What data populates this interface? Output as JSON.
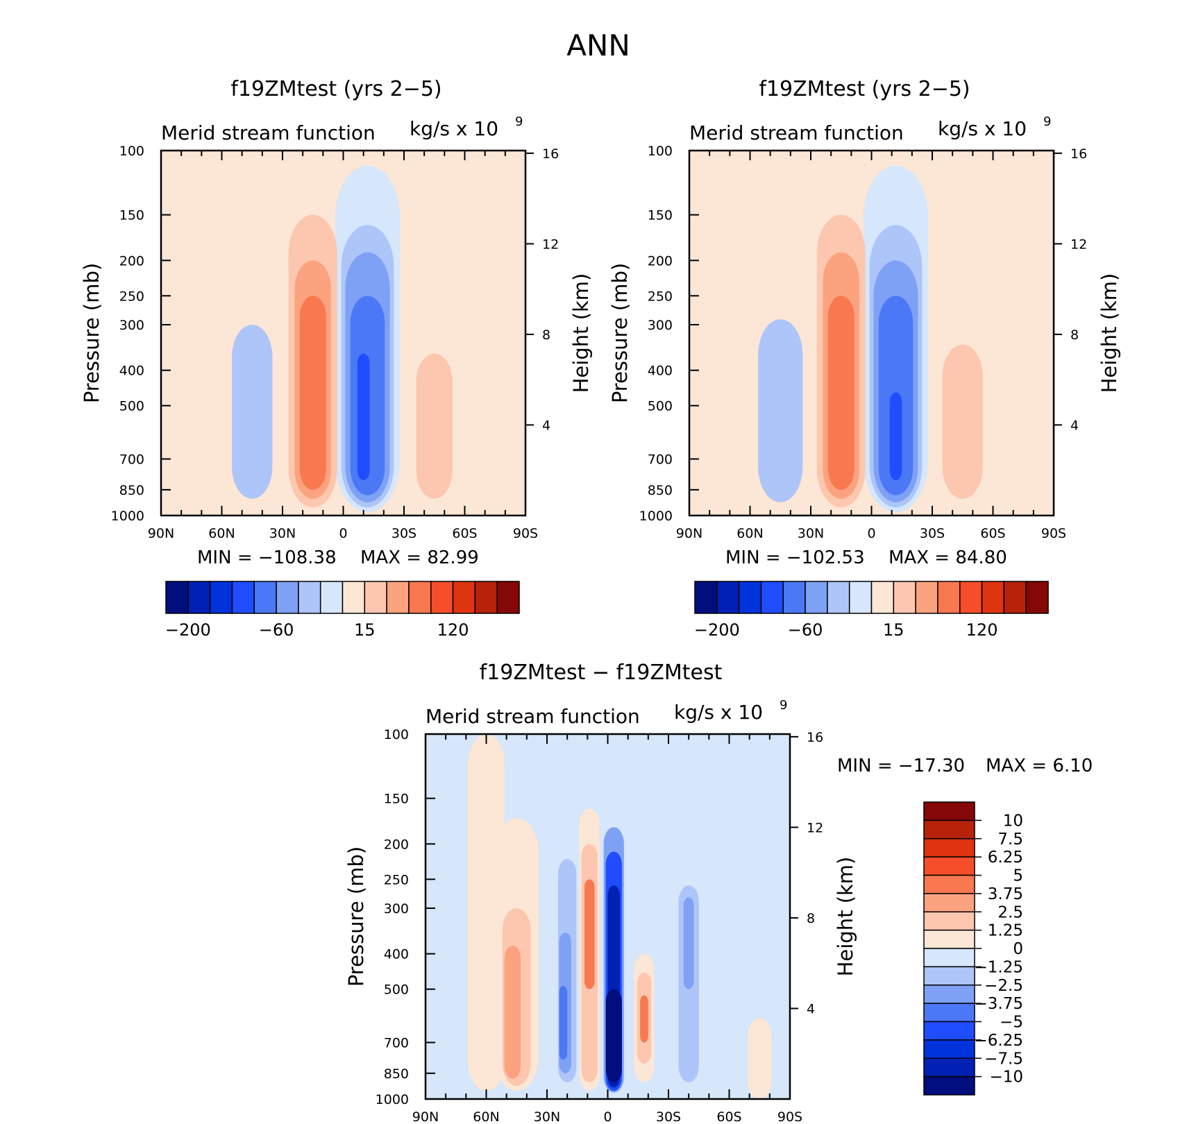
{
  "page_title": "ANN",
  "colors": {
    "neg": [
      "#000E7E",
      "#0021B4",
      "#0033DC",
      "#1F4DFF",
      "#4B78F5",
      "#7FA1F5",
      "#ADC5F8",
      "#D6E6FB"
    ],
    "pos": [
      "#FCE6D5",
      "#FCC7AE",
      "#FBA27F",
      "#F87850",
      "#F64E2A",
      "#DE3410",
      "#B7220A",
      "#850707"
    ]
  },
  "chart_data": [
    {
      "type": "heatmap",
      "title": "f19ZMtest (yrs 2−5)",
      "left_label": "Merid stream function",
      "units": "kg/s x 10",
      "units_exponent": "9",
      "ylabel": "Pressure (mb)",
      "ylabel_right": "Height (km)",
      "x_ticks": [
        "90N",
        "60N",
        "30N",
        "0",
        "30S",
        "60S",
        "90S"
      ],
      "y_ticks": [
        "100",
        "150",
        "200",
        "250",
        "300",
        "400",
        "500",
        "700",
        "850",
        "1000"
      ],
      "y_right_ticks": [
        "16",
        "12",
        "8",
        "4"
      ],
      "min_text": "MIN = −108.38",
      "max_text": "MAX =  82.99",
      "colorbar_labels": [
        "−200",
        "−60",
        "15",
        "120"
      ],
      "cells": [
        {
          "lat": -45,
          "pbot": 900,
          "ptop": 300,
          "w": 20,
          "level": -2
        },
        {
          "lat": -15,
          "pbot": 950,
          "ptop": 150,
          "w": 24,
          "level": 2
        },
        {
          "lat": -15,
          "pbot": 900,
          "ptop": 200,
          "w": 18,
          "level": 3
        },
        {
          "lat": -15,
          "pbot": 850,
          "ptop": 250,
          "w": 13,
          "level": 4
        },
        {
          "lat": 12,
          "pbot": 980,
          "ptop": 110,
          "w": 32,
          "level": -1
        },
        {
          "lat": 12,
          "pbot": 950,
          "ptop": 160,
          "w": 26,
          "level": -2
        },
        {
          "lat": 12,
          "pbot": 920,
          "ptop": 190,
          "w": 22,
          "level": -3
        },
        {
          "lat": 12,
          "pbot": 880,
          "ptop": 250,
          "w": 17,
          "level": -4
        },
        {
          "lat": 10,
          "pbot": 800,
          "ptop": 360,
          "w": 6,
          "level": -5
        },
        {
          "lat": 45,
          "pbot": 950,
          "ptop": 240,
          "w": 24,
          "level": 1
        },
        {
          "lat": 45,
          "pbot": 900,
          "ptop": 360,
          "w": 18,
          "level": 2
        }
      ]
    },
    {
      "type": "heatmap",
      "title": "f19ZMtest (yrs 2−5)",
      "left_label": "Merid stream function",
      "units": "kg/s x 10",
      "units_exponent": "9",
      "ylabel": "Pressure (mb)",
      "ylabel_right": "Height (km)",
      "x_ticks": [
        "90N",
        "60N",
        "30N",
        "0",
        "30S",
        "60S",
        "90S"
      ],
      "y_ticks": [
        "100",
        "150",
        "200",
        "250",
        "300",
        "400",
        "500",
        "700",
        "850",
        "1000"
      ],
      "y_right_ticks": [
        "16",
        "12",
        "8",
        "4"
      ],
      "min_text": "MIN = −102.53",
      "max_text": "MAX =  84.80",
      "colorbar_labels": [
        "−200",
        "−60",
        "15",
        "120"
      ],
      "cells": [
        {
          "lat": -45,
          "pbot": 920,
          "ptop": 290,
          "w": 22,
          "level": -2
        },
        {
          "lat": -15,
          "pbot": 950,
          "ptop": 150,
          "w": 24,
          "level": 2
        },
        {
          "lat": -15,
          "pbot": 900,
          "ptop": 190,
          "w": 18,
          "level": 3
        },
        {
          "lat": -15,
          "pbot": 850,
          "ptop": 250,
          "w": 13,
          "level": 4
        },
        {
          "lat": 12,
          "pbot": 980,
          "ptop": 110,
          "w": 32,
          "level": -1
        },
        {
          "lat": 12,
          "pbot": 950,
          "ptop": 160,
          "w": 26,
          "level": -2
        },
        {
          "lat": 12,
          "pbot": 920,
          "ptop": 200,
          "w": 22,
          "level": -3
        },
        {
          "lat": 12,
          "pbot": 880,
          "ptop": 250,
          "w": 17,
          "level": -4
        },
        {
          "lat": 12,
          "pbot": 800,
          "ptop": 460,
          "w": 6,
          "level": -5
        },
        {
          "lat": 45,
          "pbot": 950,
          "ptop": 240,
          "w": 26,
          "level": 1
        },
        {
          "lat": 45,
          "pbot": 900,
          "ptop": 340,
          "w": 20,
          "level": 2
        }
      ]
    },
    {
      "type": "heatmap",
      "title": "f19ZMtest − f19ZMtest",
      "left_label": "Merid stream function",
      "units": "kg/s x 10",
      "units_exponent": "9",
      "ylabel": "Pressure (mb)",
      "ylabel_right": "Height (km)",
      "x_ticks": [
        "90N",
        "60N",
        "30N",
        "0",
        "30S",
        "60S",
        "90S"
      ],
      "y_ticks": [
        "100",
        "150",
        "200",
        "250",
        "300",
        "400",
        "500",
        "700",
        "850",
        "1000"
      ],
      "y_right_ticks": [
        "16",
        "12",
        "8",
        "4"
      ],
      "min_text": "MIN = −17.30",
      "max_text": "MAX =   6.10",
      "colorbar_labels": [
        "10",
        "7.5",
        "6.25",
        "5",
        "3.75",
        "2.5",
        "1.25",
        "0",
        "−1.25",
        "−2.5",
        "−3.75",
        "−5",
        "−6.25",
        "−7.5",
        "−10"
      ],
      "cells": [
        {
          "lat": -60,
          "pbot": 950,
          "ptop": 100,
          "w": 18,
          "level": 1
        },
        {
          "lat": -45,
          "pbot": 950,
          "ptop": 170,
          "w": 22,
          "level": 1
        },
        {
          "lat": -45,
          "pbot": 920,
          "ptop": 300,
          "w": 14,
          "level": 2
        },
        {
          "lat": -47,
          "pbot": 880,
          "ptop": 380,
          "w": 8,
          "level": 3
        },
        {
          "lat": -20,
          "pbot": 950,
          "ptop": 170,
          "w": 12,
          "level": -1
        },
        {
          "lat": -20,
          "pbot": 900,
          "ptop": 220,
          "w": 9,
          "level": -2
        },
        {
          "lat": -21,
          "pbot": 850,
          "ptop": 350,
          "w": 6,
          "level": -3
        },
        {
          "lat": -22,
          "pbot": 780,
          "ptop": 490,
          "w": 4,
          "level": -4
        },
        {
          "lat": -9,
          "pbot": 950,
          "ptop": 160,
          "w": 10,
          "level": 1
        },
        {
          "lat": -9,
          "pbot": 900,
          "ptop": 200,
          "w": 8,
          "level": 2
        },
        {
          "lat": -9,
          "pbot": 500,
          "ptop": 250,
          "w": 5,
          "level": 4
        },
        {
          "lat": 3,
          "pbot": 980,
          "ptop": 150,
          "w": 12,
          "level": -1
        },
        {
          "lat": 3,
          "pbot": 960,
          "ptop": 180,
          "w": 10,
          "level": -3
        },
        {
          "lat": 3,
          "pbot": 950,
          "ptop": 210,
          "w": 8,
          "level": -5
        },
        {
          "lat": 3,
          "pbot": 930,
          "ptop": 260,
          "w": 6,
          "level": -7
        },
        {
          "lat": 3,
          "pbot": 900,
          "ptop": 500,
          "w": 8,
          "level": -8
        },
        {
          "lat": 18,
          "pbot": 900,
          "ptop": 400,
          "w": 10,
          "level": 1
        },
        {
          "lat": 18,
          "pbot": 800,
          "ptop": 450,
          "w": 7,
          "level": 2
        },
        {
          "lat": 18,
          "pbot": 700,
          "ptop": 520,
          "w": 4,
          "level": 4
        },
        {
          "lat": 40,
          "pbot": 950,
          "ptop": 200,
          "w": 16,
          "level": -1
        },
        {
          "lat": 40,
          "pbot": 900,
          "ptop": 260,
          "w": 10,
          "level": -2
        },
        {
          "lat": 40,
          "pbot": 500,
          "ptop": 280,
          "w": 5,
          "level": -3
        },
        {
          "lat": 75,
          "pbot": 1000,
          "ptop": 600,
          "w": 12,
          "level": 1
        }
      ]
    }
  ]
}
